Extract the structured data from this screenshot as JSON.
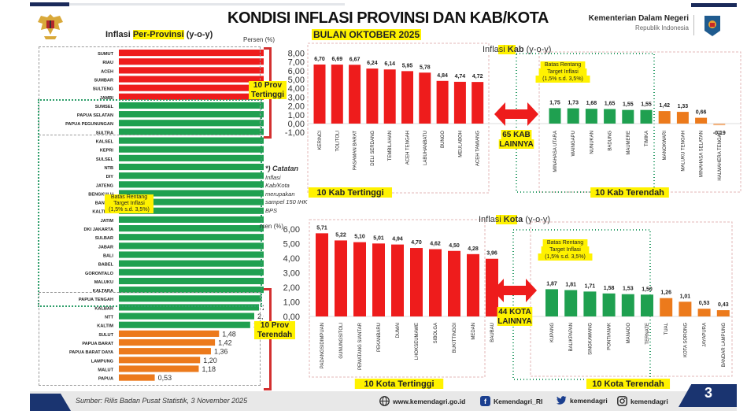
{
  "header": {
    "title": "KONDISI INFLASI PROVINSI DAN KAB/KOTA",
    "subtitle": "BULAN OKTOBER 2025",
    "ministry_name": "Kementerian Dalam Negeri",
    "ministry_sub": "Republik Indonesia"
  },
  "provinsi": {
    "title_prefix": "Inflasi ",
    "title_highlight": "Per-Provinsi",
    "title_suffix": " (y-o-y)",
    "unit": "Persen (%)",
    "label_top": "10 Prov\nTertinggi",
    "label_bottom": "10 Prov\nTerendah",
    "target_label": "Batas Rentang\nTarget Inflasi\n(1,5% s.d. 3,5%)"
  },
  "note": {
    "heading": "*) Catatan",
    "lines": [
      "Inflasi",
      "Kab/Kota",
      "merupakan",
      "sampel 150 IHK",
      "BPS"
    ]
  },
  "kab": {
    "title_prefix": "Inflasi ",
    "title_highlight": "Kab",
    "title_suffix": " (y-o-y)",
    "unit": "Persen (%)",
    "others_label": "65 KAB\nLAINNYA",
    "top_caption": "10 Kab Tertinggi",
    "bottom_caption": "10 Kab Terendah",
    "target_label": "Batas Rentang\nTarget Inflasi\n(1,5% s.d. 3,5%)"
  },
  "kota": {
    "title_prefix": "Inflasi ",
    "title_highlight": "Kota",
    "title_suffix": " (y-o-y)",
    "unit": "Persen (%)",
    "others_label": "44 KOTA\nLAINNYA",
    "top_caption": "10 Kota Tertinggi",
    "bottom_caption": "10 Kota Terendah",
    "target_label": "Batas Rentang\nTarget Inflasi\n(1,5% s.d. 3,5%)"
  },
  "footer": {
    "source": "Sumber: Rilis Badan Pusat Statistik, 3 November 2025",
    "website": "www.kemendagri.go.id",
    "facebook": "Kemendagri_RI",
    "twitter": "kemendagri",
    "instagram": "kemendagri",
    "page_number": "3"
  },
  "colors": {
    "high": "#ee1c1c",
    "target": "#1fa050",
    "low": "#ec7a1c",
    "highlight": "#fff200",
    "navy": "#1a3470"
  },
  "chart_data": [
    {
      "type": "bar",
      "orientation": "horizontal",
      "title": "Inflasi Per-Provinsi (y-o-y)",
      "xlabel": "Persen (%)",
      "categories": [
        "SUMUT",
        "RIAU",
        "ACEH",
        "SUMBAR",
        "SULTENG",
        "JAMBI",
        "SUMSEL",
        "PAPUA SELATAN",
        "PAPUA PEGUNUNGAN",
        "SULTRA",
        "KALSEL",
        "KEPRI",
        "SULSEL",
        "NTB",
        "DIY",
        "JATENG",
        "BENGKULU",
        "BANTEN",
        "KALTENG",
        "JATIM",
        "DKI JAKARTA",
        "SULBAR",
        "JABAR",
        "BALI",
        "BABEL",
        "GORONTALO",
        "MALUKU",
        "KALTARA",
        "PAPUA TENGAH",
        "KALBAR",
        "NTT",
        "KALTIM",
        "SULUT",
        "PAPUA BARAT",
        "PAPUA BARAT DAYA",
        "LAMPUNG",
        "MALUT",
        "PAPUA"
      ],
      "values": [
        4.97,
        4.95,
        4.66,
        4.52,
        3.92,
        3.71,
        3.49,
        3.43,
        3.32,
        3.26,
        3.11,
        3.01,
        2.98,
        2.96,
        2.9,
        2.86,
        2.85,
        2.75,
        2.73,
        2.69,
        2.69,
        2.64,
        2.63,
        2.61,
        2.51,
        2.44,
        2.3,
        2.23,
        2.11,
        2.07,
        2.0,
        1.94,
        1.48,
        1.42,
        1.36,
        1.2,
        1.18,
        0.53
      ],
      "value_labels": [
        "4,97",
        "4,95",
        "4,66",
        "4,52",
        "3,92",
        "3,71",
        "3,49",
        "3,43",
        "3,32",
        "3,26",
        "3,11",
        "3,01",
        "2,98",
        "2,96",
        "2,90",
        "2,86",
        "2,85",
        "2,75",
        "2,73",
        "2,69",
        "2,69",
        "2,64",
        "2,63",
        "2,61",
        "2,51",
        "2,44",
        "2,30",
        "2,23",
        "2,11",
        "2,07",
        "2,00",
        "1,94",
        "1,48",
        "1,42",
        "1,36",
        "1,20",
        "1,18",
        "0,53"
      ],
      "color_groups": [
        "high",
        "high",
        "high",
        "high",
        "high",
        "high",
        "target",
        "target",
        "target",
        "target",
        "target",
        "target",
        "target",
        "target",
        "target",
        "target",
        "target",
        "target",
        "target",
        "target",
        "target",
        "target",
        "target",
        "target",
        "target",
        "target",
        "target",
        "target",
        "target",
        "target",
        "target",
        "target",
        "low",
        "low",
        "low",
        "low",
        "low",
        "low"
      ],
      "xlim": [
        0,
        5.5
      ],
      "target_range": [
        1.5,
        3.5
      ]
    },
    {
      "type": "bar",
      "title": "Inflasi Kab (y-o-y)",
      "ylabel": "Persen (%)",
      "ylim": [
        -1,
        8
      ],
      "yticks": [
        "8,00",
        "7,00",
        "6,00",
        "5,00",
        "4,00",
        "3,00",
        "2,00",
        "1,00",
        "0,00",
        "-1,00"
      ],
      "series": [
        {
          "name": "10 Kab Tertinggi",
          "categories": [
            "KERINCI",
            "TOLITOLI",
            "PASAMAN BARAT",
            "DELI SERDANG",
            "TEMBILAHAN",
            "ACEH TENGAH",
            "LABUHANBATU",
            "BUNGO",
            "MEULABOH",
            "ACEH TAMIANG"
          ],
          "values": [
            6.7,
            6.69,
            6.67,
            6.24,
            6.14,
            5.95,
            5.78,
            4.84,
            4.74,
            4.72
          ],
          "value_labels": [
            "6,70",
            "6,69",
            "6,67",
            "6,24",
            "6,14",
            "5,95",
            "5,78",
            "4,84",
            "4,74",
            "4,72"
          ],
          "color_groups": [
            "high",
            "high",
            "high",
            "high",
            "high",
            "high",
            "high",
            "high",
            "high",
            "high"
          ]
        },
        {
          "name": "10 Kab Terendah",
          "categories": [
            "MINAHASA UTARA",
            "WAINGAPU",
            "NUNUKAN",
            "BADUNG",
            "MAUMERE",
            "TIMIKA",
            "MANOKWARI",
            "MALUKU TENGAH",
            "MINAHASA SELATAN",
            "HALMAHERA TENGAH"
          ],
          "values": [
            1.75,
            1.73,
            1.68,
            1.65,
            1.55,
            1.55,
            1.42,
            1.33,
            0.66,
            -0.19
          ],
          "value_labels": [
            "1,75",
            "1,73",
            "1,68",
            "1,65",
            "1,55",
            "1,55",
            "1,42",
            "1,33",
            "0,66",
            "-0,19"
          ],
          "color_groups": [
            "target",
            "target",
            "target",
            "target",
            "target",
            "target",
            "low",
            "low",
            "low",
            "low"
          ]
        }
      ]
    },
    {
      "type": "bar",
      "title": "Inflasi Kota (y-o-y)",
      "ylabel": "Persen (%)",
      "ylim": [
        0,
        6
      ],
      "yticks": [
        "6,00",
        "5,00",
        "4,00",
        "3,00",
        "2,00",
        "1,00",
        "0,00"
      ],
      "series": [
        {
          "name": "10 Kota Tertinggi",
          "categories": [
            "PADANGSIDIMPUAN",
            "GUNUNGSITOLI",
            "PEMATANG SIANTAR",
            "PEKANBARU",
            "DUMAI",
            "LHOKSEUMAWE",
            "SIBOLGA",
            "BUKITTINGGI",
            "MEDAN",
            "BAUBAU"
          ],
          "values": [
            5.71,
            5.22,
            5.1,
            5.01,
            4.94,
            4.7,
            4.62,
            4.5,
            4.28,
            3.96
          ],
          "value_labels": [
            "5,71",
            "5,22",
            "5,10",
            "5,01",
            "4,94",
            "4,70",
            "4,62",
            "4,50",
            "4,28",
            "3,96"
          ],
          "color_groups": [
            "high",
            "high",
            "high",
            "high",
            "high",
            "high",
            "high",
            "high",
            "high",
            "high"
          ]
        },
        {
          "name": "10 Kota Terendah",
          "categories": [
            "KUPANG",
            "BALIKPAPAN",
            "SINGKAWANG",
            "PONTIANAK",
            "MANADO",
            "TERNATE",
            "TUAL",
            "KOTA SORONG",
            "JAYAPURA",
            "BANDAR LAMPUNG"
          ],
          "values": [
            1.87,
            1.81,
            1.71,
            1.58,
            1.53,
            1.5,
            1.26,
            1.01,
            0.53,
            0.43
          ],
          "value_labels": [
            "1,87",
            "1,81",
            "1,71",
            "1,58",
            "1,53",
            "1,50",
            "1,26",
            "1,01",
            "0,53",
            "0,43"
          ],
          "color_groups": [
            "target",
            "target",
            "target",
            "target",
            "target",
            "target",
            "low",
            "low",
            "low",
            "low"
          ]
        }
      ]
    }
  ]
}
